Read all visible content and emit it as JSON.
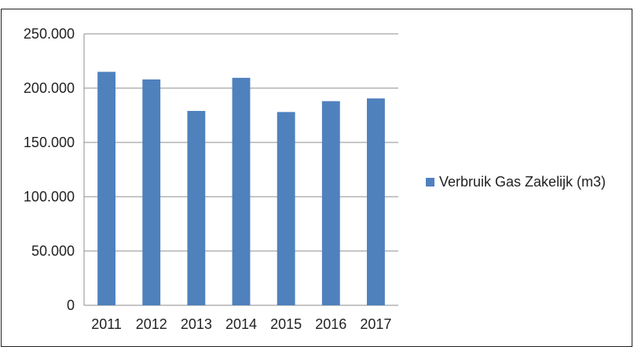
{
  "chart_data": {
    "type": "bar",
    "categories": [
      "2011",
      "2012",
      "2013",
      "2014",
      "2015",
      "2016",
      "2017"
    ],
    "series": [
      {
        "name": "Verbruik Gas Zakelijk (m3)",
        "values": [
          215000,
          208000,
          179000,
          209500,
          178000,
          188000,
          190500
        ]
      }
    ],
    "yticks": [
      "0",
      "50.000",
      "100.000",
      "150.000",
      "200.000",
      "250.000"
    ],
    "ylim": [
      0,
      250000
    ],
    "grid": true,
    "legend_position": "right",
    "bar_color": "#4f81bd",
    "title": "",
    "xlabel": "",
    "ylabel": ""
  }
}
